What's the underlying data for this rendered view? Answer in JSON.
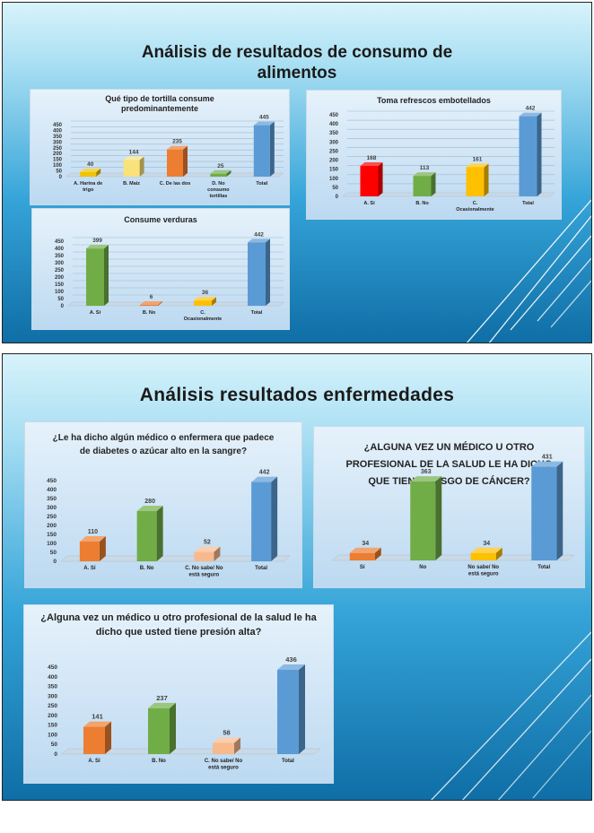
{
  "slide1": {
    "title_line1": "Análisis de resultados de consumo de",
    "title_line2": "alimentos"
  },
  "slide2": {
    "title": "Análisis resultados enfermedades"
  },
  "chart_data": [
    {
      "id": "tortilla",
      "type": "bar",
      "title": "Qué tipo de tortilla consume predominantemente",
      "categories": [
        [
          "A. Harina de",
          "trigo"
        ],
        [
          "B. Maiz"
        ],
        [
          "C. De las dos"
        ],
        [
          "D. No",
          "consumo",
          "tortillas"
        ],
        [
          "Total"
        ]
      ],
      "values": [
        40,
        144,
        235,
        25,
        445
      ],
      "colors": [
        "#f2c300",
        "#f9e27a",
        "#ed7d31",
        "#70ad47",
        "#5b9bd5"
      ],
      "yticks": [
        0,
        50,
        100,
        150,
        200,
        250,
        300,
        350,
        400,
        450
      ],
      "ylim": [
        0,
        450
      ],
      "grid": true
    },
    {
      "id": "refrescos",
      "type": "bar",
      "title": "Toma refrescos embotellados",
      "categories": [
        [
          "A. Sí"
        ],
        [
          "B. No"
        ],
        [
          "C.",
          "Ocasionalmente"
        ],
        [
          "Total"
        ]
      ],
      "values": [
        168,
        113,
        161,
        442
      ],
      "colors": [
        "#ff0000",
        "#70ad47",
        "#ffc000",
        "#5b9bd5"
      ],
      "yticks": [
        0,
        50,
        100,
        150,
        200,
        250,
        300,
        350,
        400,
        450
      ],
      "ylim": [
        0,
        450
      ],
      "grid": true
    },
    {
      "id": "verduras",
      "type": "bar",
      "title": "Consume verduras",
      "categories": [
        [
          "A. Sí"
        ],
        [
          "B. No"
        ],
        [
          "C.",
          "Ocasionalmente"
        ],
        [
          "Total"
        ]
      ],
      "values": [
        399,
        6,
        36,
        442
      ],
      "colors": [
        "#70ad47",
        "#ed7d31",
        "#ffc000",
        "#5b9bd5"
      ],
      "yticks": [
        0,
        50,
        100,
        150,
        200,
        250,
        300,
        350,
        400,
        450
      ],
      "ylim": [
        0,
        450
      ],
      "grid": true
    },
    {
      "id": "diabetes",
      "type": "bar",
      "title": "¿Le ha dicho algún médico o enfermera que padece de diabetes o azúcar alto en la sangre?",
      "categories": [
        [
          "A. Sí"
        ],
        [
          "B. No"
        ],
        [
          "C. No sabe/ No",
          "está seguro"
        ],
        [
          "Total"
        ]
      ],
      "values": [
        110,
        280,
        52,
        442
      ],
      "colors": [
        "#ed7d31",
        "#70ad47",
        "#f8b98d",
        "#5b9bd5"
      ],
      "yticks": [
        0,
        50,
        100,
        150,
        200,
        250,
        300,
        350,
        400,
        450
      ],
      "ylim": [
        0,
        450
      ],
      "grid": false
    },
    {
      "id": "cancer",
      "type": "bar",
      "title": "¿ALGUNA VEZ UN MÉDICO U OTRO PROFESIONAL DE LA SALUD LE HA DICHO QUE TIENE RIESGO DE CÁNCER?",
      "categories": [
        [
          "Sí"
        ],
        [
          "No"
        ],
        [
          "No sabe/ No",
          "está seguro"
        ],
        [
          "Total"
        ]
      ],
      "values": [
        34,
        363,
        34,
        431
      ],
      "colors": [
        "#ed7d31",
        "#70ad47",
        "#ffc000",
        "#5b9bd5"
      ],
      "yticks": [],
      "ylim": [
        0,
        450
      ],
      "grid": false
    },
    {
      "id": "presion",
      "type": "bar",
      "title": "¿Alguna vez un médico u otro profesional de la salud le ha dicho que usted tiene presión alta?",
      "categories": [
        [
          "A. Sí"
        ],
        [
          "B. No"
        ],
        [
          "C. No sabe/ No",
          "está seguro"
        ],
        [
          "Total"
        ]
      ],
      "values": [
        141,
        237,
        58,
        436
      ],
      "colors": [
        "#ed7d31",
        "#70ad47",
        "#f8b98d",
        "#5b9bd5"
      ],
      "yticks": [
        0,
        50,
        100,
        150,
        200,
        250,
        300,
        350,
        400,
        450
      ],
      "ylim": [
        0,
        450
      ],
      "grid": false
    }
  ]
}
